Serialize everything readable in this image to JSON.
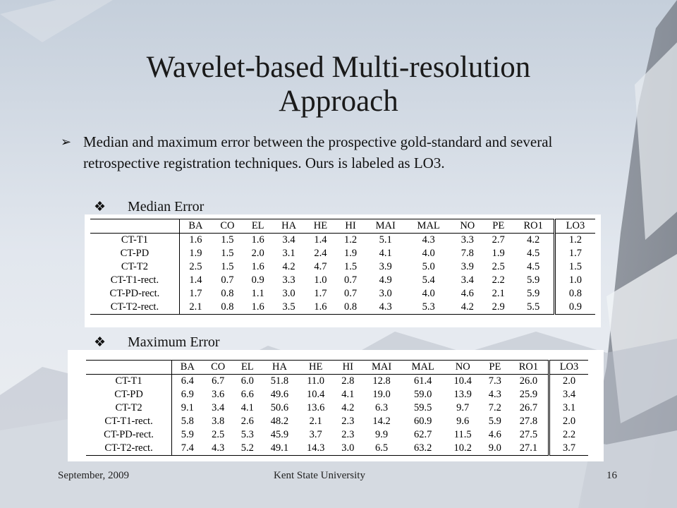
{
  "slide": {
    "title": "Wavelet-based Multi-resolution Approach",
    "bullet_marker": "➢",
    "bullet": "Median and maximum error between the prospective gold-standard and several retrospective registration techniques. Ours is labeled as LO3.",
    "sub_marker": "❖",
    "median_label": "Median Error",
    "max_label": "Maximum Error",
    "footer_left": "September, 2009",
    "footer_center": "Kent State University",
    "page_number": "16"
  },
  "tables": {
    "columns": [
      "BA",
      "CO",
      "EL",
      "HA",
      "HE",
      "HI",
      "MAI",
      "MAL",
      "NO",
      "PE",
      "RO1",
      "LO3"
    ],
    "median": [
      [
        "CT-T1",
        "1.6",
        "1.5",
        "1.6",
        "3.4",
        "1.4",
        "1.2",
        "5.1",
        "4.3",
        "3.3",
        "2.7",
        "4.2",
        "1.2"
      ],
      [
        "CT-PD",
        "1.9",
        "1.5",
        "2.0",
        "3.1",
        "2.4",
        "1.9",
        "4.1",
        "4.0",
        "7.8",
        "1.9",
        "4.5",
        "1.7"
      ],
      [
        "CT-T2",
        "2.5",
        "1.5",
        "1.6",
        "4.2",
        "4.7",
        "1.5",
        "3.9",
        "5.0",
        "3.9",
        "2.5",
        "4.5",
        "1.5"
      ],
      [
        "CT-T1-rect.",
        "1.4",
        "0.7",
        "0.9",
        "3.3",
        "1.0",
        "0.7",
        "4.9",
        "5.4",
        "3.4",
        "2.2",
        "5.9",
        "1.0"
      ],
      [
        "CT-PD-rect.",
        "1.7",
        "0.8",
        "1.1",
        "3.0",
        "1.7",
        "0.7",
        "3.0",
        "4.0",
        "4.6",
        "2.1",
        "5.9",
        "0.8"
      ],
      [
        "CT-T2-rect.",
        "2.1",
        "0.8",
        "1.6",
        "3.5",
        "1.6",
        "0.8",
        "4.3",
        "5.3",
        "4.2",
        "2.9",
        "5.5",
        "0.9"
      ]
    ],
    "maximum": [
      [
        "CT-T1",
        "6.4",
        "6.7",
        "6.0",
        "51.8",
        "11.0",
        "2.8",
        "12.8",
        "61.4",
        "10.4",
        "7.3",
        "26.0",
        "2.0"
      ],
      [
        "CT-PD",
        "6.9",
        "3.6",
        "6.6",
        "49.6",
        "10.4",
        "4.1",
        "19.0",
        "59.0",
        "13.9",
        "4.3",
        "25.9",
        "3.4"
      ],
      [
        "CT-T2",
        "9.1",
        "3.4",
        "4.1",
        "50.6",
        "13.6",
        "4.2",
        "6.3",
        "59.5",
        "9.7",
        "7.2",
        "26.7",
        "3.1"
      ],
      [
        "CT-T1-rect.",
        "5.8",
        "3.8",
        "2.6",
        "48.2",
        "2.1",
        "2.3",
        "14.2",
        "60.9",
        "9.6",
        "5.9",
        "27.8",
        "2.0"
      ],
      [
        "CT-PD-rect.",
        "5.9",
        "2.5",
        "5.3",
        "45.9",
        "3.7",
        "2.3",
        "9.9",
        "62.7",
        "11.5",
        "4.6",
        "27.5",
        "2.2"
      ],
      [
        "CT-T2-rect.",
        "7.4",
        "4.3",
        "5.2",
        "49.1",
        "14.3",
        "3.0",
        "6.5",
        "63.2",
        "10.2",
        "9.0",
        "27.1",
        "3.7"
      ]
    ]
  }
}
